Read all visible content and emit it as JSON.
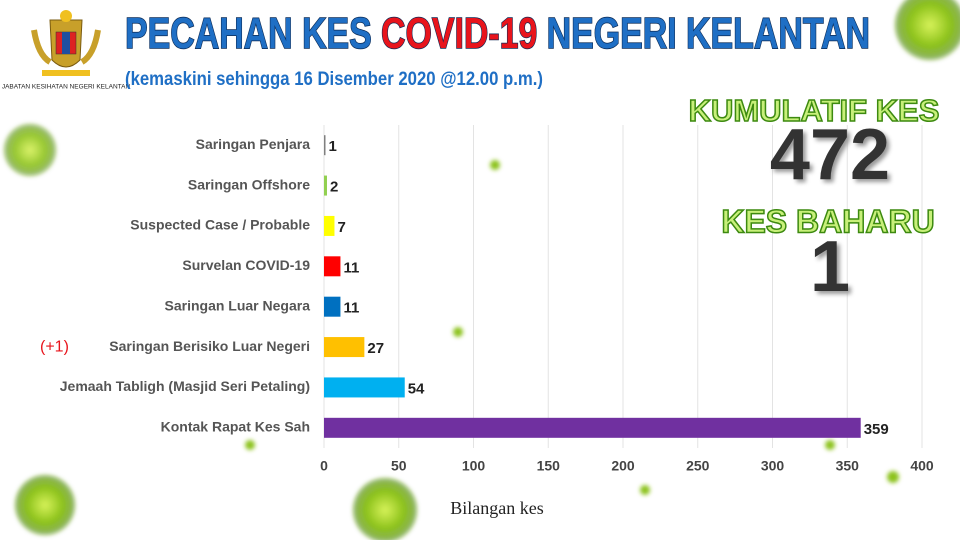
{
  "chart_data": {
    "type": "bar",
    "orientation": "horizontal",
    "title": [
      {
        "text": "PECAHAN KES",
        "color": "#1f6fc5"
      },
      {
        "text": "COVID-19",
        "color": "#e8141c"
      },
      {
        "text": "NEGERI KELANTAN",
        "color": "#1f6fc5"
      }
    ],
    "subtitle": "(kemaskini sehingga 16 Disember 2020 @12.00 p.m.)",
    "logo_text": "JABATAN KESIHATAN NEGERI KELANTAN",
    "categories": [
      "Saringan Penjara",
      "Saringan Offshore",
      "Suspected Case / Probable",
      "Survelan COVID-19",
      "Saringan Luar Negara",
      "Saringan Berisiko Luar Negeri",
      "Jemaah Tabligh (Masjid Seri Petaling)",
      "Kontak Rapat Kes Sah"
    ],
    "values": [
      1,
      2,
      7,
      11,
      11,
      27,
      54,
      359
    ],
    "colors": [
      "#808080",
      "#92d050",
      "#ffff00",
      "#ff0000",
      "#0070c0",
      "#ffc000",
      "#00b0f0",
      "#7030a0"
    ],
    "annotations": [
      {
        "text": "(+1)",
        "category": "Saringan Berisiko Luar Negeri",
        "color": "#e8141c"
      }
    ],
    "xlabel": "Bilangan kes",
    "xlim": [
      0,
      400
    ],
    "xticks": [
      0,
      50,
      100,
      150,
      200,
      250,
      300,
      350,
      400
    ],
    "grid": true,
    "stats": [
      {
        "label": "KUMULATIF KES",
        "value": 472
      },
      {
        "label": "KES BAHARU",
        "value": 1
      }
    ]
  }
}
